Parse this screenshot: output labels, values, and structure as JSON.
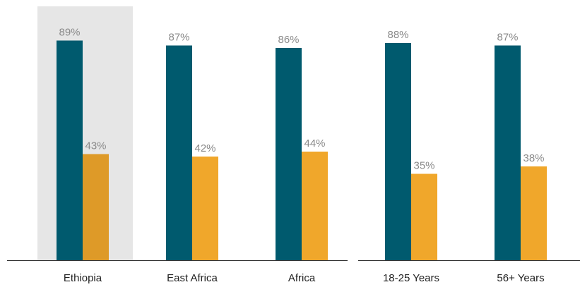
{
  "chart_data": {
    "type": "bar",
    "categories": [
      "Ethiopia",
      "East Africa",
      "Africa",
      "18-25 Years",
      "56+ Years"
    ],
    "highlighted_category": "Ethiopia",
    "series": [
      {
        "values": [
          89,
          87,
          86,
          88,
          87
        ],
        "labels": [
          "89%",
          "87%",
          "86%",
          "88%",
          "87%"
        ],
        "color": "#005A6E"
      },
      {
        "values": [
          43,
          42,
          44,
          35,
          38
        ],
        "labels": [
          "43%",
          "42%",
          "44%",
          "35%",
          "38%"
        ],
        "color": "#F0A72B",
        "highlight_color": "#DE9A28"
      }
    ],
    "ylim": [
      0,
      100
    ],
    "grid": false,
    "legend": "none",
    "highlight_background": "#E6E6E6"
  }
}
